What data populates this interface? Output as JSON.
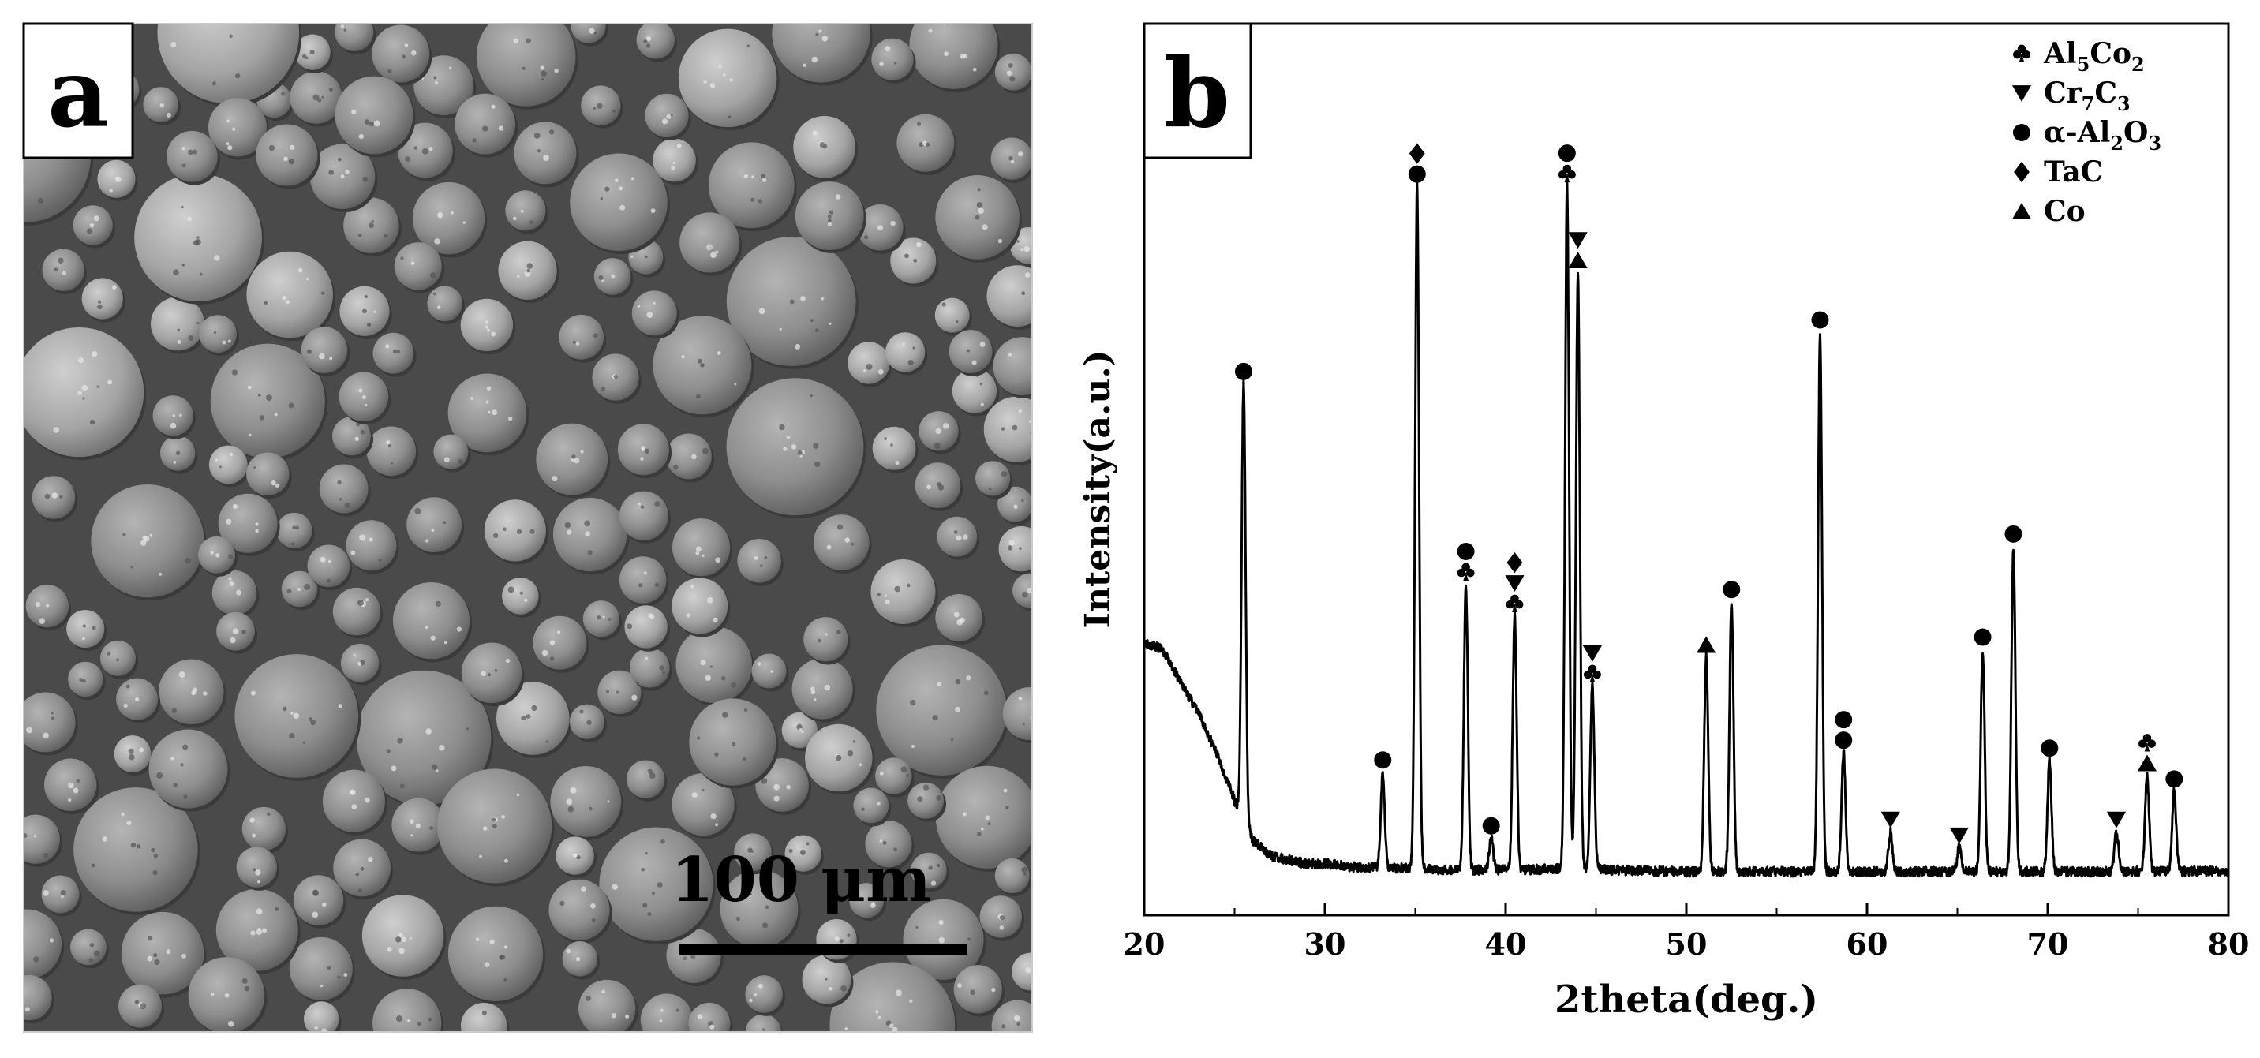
{
  "panel_a": {
    "label": "a",
    "scale_bar_text": "100 μm",
    "image_kind": "SEM micrograph of spherical powder particles"
  },
  "panel_b": {
    "label": "b"
  },
  "chart_data": {
    "type": "line",
    "title": "",
    "xlabel": "2theta(deg.)",
    "ylabel": "Intensity(a.u.)",
    "xlim": [
      20,
      80
    ],
    "ylim": [
      0,
      100
    ],
    "xticks": [
      "20",
      "30",
      "40",
      "50",
      "60",
      "70",
      "80"
    ],
    "y_tick_labels_shown": false,
    "grid": false,
    "legend_position": "top-right",
    "line_color": "#000000",
    "legend": [
      {
        "marker": "club",
        "label": "Al5Co2",
        "label_main": "Al",
        "label_sub1": "5",
        "label_mid": "Co",
        "label_sub2": "2",
        "label_end": ""
      },
      {
        "marker": "triangle-down",
        "label": "Cr7C3",
        "label_main": "Cr",
        "label_sub1": "7",
        "label_mid": "C",
        "label_sub2": "3",
        "label_end": ""
      },
      {
        "marker": "circle",
        "label": "α-Al2O3",
        "label_main": "α-Al",
        "label_sub1": "2",
        "label_mid": "O",
        "label_sub2": "3",
        "label_end": ""
      },
      {
        "marker": "diamond",
        "label": "TaC",
        "label_main": "TaC",
        "label_sub1": "",
        "label_mid": "",
        "label_sub2": "",
        "label_end": ""
      },
      {
        "marker": "triangle-up",
        "label": "Co",
        "label_main": "Co",
        "label_sub1": "",
        "label_mid": "",
        "label_sub2": "",
        "label_end": ""
      }
    ],
    "background": [
      [
        20,
        31
      ],
      [
        21,
        30
      ],
      [
        22,
        26
      ],
      [
        23,
        22
      ],
      [
        24,
        17
      ],
      [
        25,
        11
      ],
      [
        26,
        6
      ],
      [
        27,
        4
      ],
      [
        28,
        3.5
      ],
      [
        29,
        3
      ],
      [
        30,
        3
      ],
      [
        32,
        2.5
      ],
      [
        34,
        2.5
      ],
      [
        36,
        2.3
      ],
      [
        38,
        2.2
      ],
      [
        40,
        2.2
      ],
      [
        42,
        2.3
      ],
      [
        44,
        2.5
      ],
      [
        46,
        2.2
      ],
      [
        48,
        2.1
      ],
      [
        50,
        2
      ],
      [
        52,
        2
      ],
      [
        54,
        2
      ],
      [
        56,
        2
      ],
      [
        58,
        2
      ],
      [
        60,
        2
      ],
      [
        62,
        2
      ],
      [
        64,
        2
      ],
      [
        66,
        2
      ],
      [
        68,
        2
      ],
      [
        70,
        2
      ],
      [
        72,
        2
      ],
      [
        74,
        2
      ],
      [
        76,
        2.1
      ],
      [
        78,
        2.1
      ],
      [
        80,
        2
      ]
    ],
    "peaks": [
      {
        "x": 25.5,
        "height": 55,
        "markers": [
          "circle"
        ]
      },
      {
        "x": 33.2,
        "height": 12,
        "markers": [
          "circle"
        ]
      },
      {
        "x": 35.1,
        "height": 86,
        "markers": [
          "circle",
          "diamond"
        ]
      },
      {
        "x": 37.8,
        "height": 36,
        "markers": [
          "club",
          "circle"
        ]
      },
      {
        "x": 39.2,
        "height": 4,
        "markers": [
          "circle"
        ]
      },
      {
        "x": 40.5,
        "height": 32,
        "markers": [
          "club",
          "triangle-down",
          "diamond"
        ]
      },
      {
        "x": 43.4,
        "height": 86,
        "markers": [
          "club",
          "circle"
        ]
      },
      {
        "x": 44.0,
        "height": 75,
        "markers": [
          "triangle-up",
          "triangle-down"
        ]
      },
      {
        "x": 44.8,
        "height": 23,
        "markers": [
          "club",
          "triangle-down"
        ]
      },
      {
        "x": 51.1,
        "height": 27,
        "markers": [
          "triangle-up"
        ]
      },
      {
        "x": 52.5,
        "height": 34,
        "markers": [
          "circle"
        ]
      },
      {
        "x": 57.4,
        "height": 68,
        "markers": [
          "circle"
        ]
      },
      {
        "x": 58.7,
        "height": 15,
        "markers": [
          "circle",
          "circle"
        ]
      },
      {
        "x": 61.3,
        "height": 5,
        "markers": [
          "triangle-down"
        ]
      },
      {
        "x": 65.1,
        "height": 3,
        "markers": [
          "triangle-down"
        ]
      },
      {
        "x": 66.4,
        "height": 28,
        "markers": [
          "circle"
        ]
      },
      {
        "x": 68.1,
        "height": 41,
        "markers": [
          "circle"
        ]
      },
      {
        "x": 70.1,
        "height": 14,
        "markers": [
          "circle"
        ]
      },
      {
        "x": 73.8,
        "height": 5,
        "markers": [
          "triangle-down"
        ]
      },
      {
        "x": 75.5,
        "height": 12,
        "markers": [
          "triangle-up",
          "club"
        ]
      },
      {
        "x": 77.0,
        "height": 10,
        "markers": [
          "circle"
        ]
      }
    ]
  }
}
